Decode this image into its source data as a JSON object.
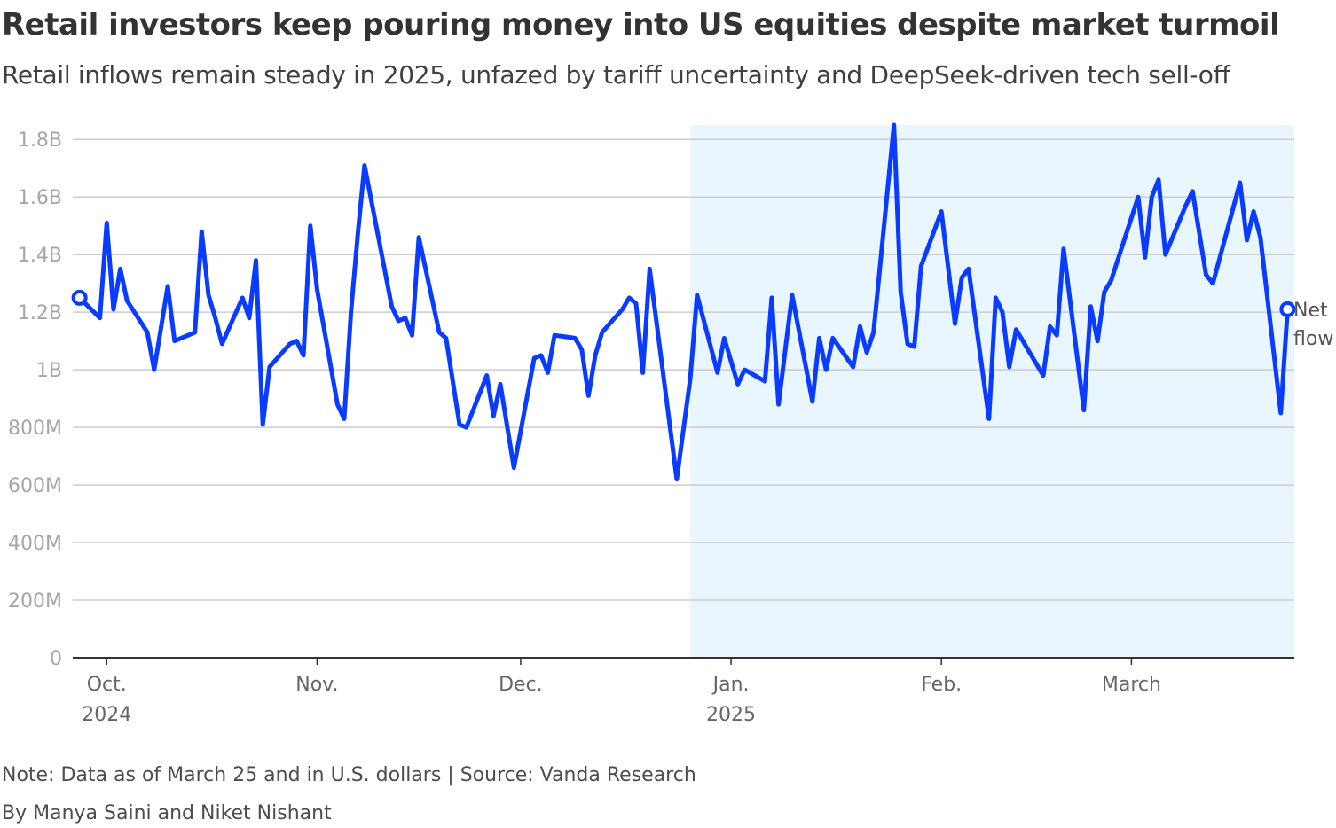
{
  "title": "Retail investors keep pouring money into US equities despite market turmoil",
  "subtitle": "Retail inflows remain steady in 2025, unfazed by tariff uncertainty and DeepSeek-driven tech sell-off",
  "note": "Note: Data as of March 25 and in U.S. dollars | Source: Vanda Research",
  "byline": "By Manya Saini and Niket Nishant",
  "colors": {
    "line": "#0a3cff",
    "shade": "#eaf6fd",
    "grid": "#cccccc",
    "axis": "#333333"
  },
  "chart_data": {
    "type": "line",
    "title": "Retail investors keep pouring money into US equities despite market turmoil",
    "ylabel": "",
    "xlabel": "",
    "ylim": [
      0,
      1.85
    ],
    "yticks": [
      {
        "v": 0,
        "label": "0"
      },
      {
        "v": 0.2,
        "label": "200M"
      },
      {
        "v": 0.4,
        "label": "400M"
      },
      {
        "v": 0.6,
        "label": "600M"
      },
      {
        "v": 0.8,
        "label": "800M"
      },
      {
        "v": 1.0,
        "label": "1B"
      },
      {
        "v": 1.2,
        "label": "1.2B"
      },
      {
        "v": 1.4,
        "label": "1.4B"
      },
      {
        "v": 1.6,
        "label": "1.6B"
      },
      {
        "v": 1.8,
        "label": "1.8B"
      }
    ],
    "xdomain": [
      -5,
      175
    ],
    "xticks": [
      {
        "d": 0,
        "line1": "Oct.",
        "line2": "2024"
      },
      {
        "d": 31,
        "line1": "Nov.",
        "line2": ""
      },
      {
        "d": 61,
        "line1": "Dec.",
        "line2": ""
      },
      {
        "d": 92,
        "line1": "Jan.",
        "line2": "2025"
      },
      {
        "d": 123,
        "line1": "Feb.",
        "line2": ""
      },
      {
        "d": 151,
        "line1": "March",
        "line2": ""
      }
    ],
    "shaded_range": [
      86,
      175
    ],
    "series": [
      {
        "name": "Net flow",
        "label_line1": "Net",
        "label_line2": "flow",
        "points": [
          [
            -4,
            1.25
          ],
          [
            -1,
            1.18
          ],
          [
            0,
            1.51
          ],
          [
            1,
            1.21
          ],
          [
            2,
            1.35
          ],
          [
            3,
            1.24
          ],
          [
            6,
            1.13
          ],
          [
            7,
            1.0
          ],
          [
            9,
            1.29
          ],
          [
            10,
            1.1
          ],
          [
            13,
            1.13
          ],
          [
            14,
            1.48
          ],
          [
            15,
            1.26
          ],
          [
            16,
            1.18
          ],
          [
            17,
            1.09
          ],
          [
            20,
            1.25
          ],
          [
            21,
            1.18
          ],
          [
            22,
            1.38
          ],
          [
            23,
            0.81
          ],
          [
            24,
            1.01
          ],
          [
            27,
            1.09
          ],
          [
            28,
            1.1
          ],
          [
            29,
            1.05
          ],
          [
            30,
            1.5
          ],
          [
            31,
            1.28
          ],
          [
            34,
            0.88
          ],
          [
            35,
            0.83
          ],
          [
            36,
            1.2
          ],
          [
            37,
            1.47
          ],
          [
            38,
            1.71
          ],
          [
            42,
            1.22
          ],
          [
            43,
            1.17
          ],
          [
            44,
            1.18
          ],
          [
            45,
            1.12
          ],
          [
            46,
            1.46
          ],
          [
            49,
            1.13
          ],
          [
            50,
            1.11
          ],
          [
            52,
            0.81
          ],
          [
            53,
            0.8
          ],
          [
            56,
            0.98
          ],
          [
            57,
            0.84
          ],
          [
            58,
            0.95
          ],
          [
            60,
            0.66
          ],
          [
            63,
            1.04
          ],
          [
            64,
            1.05
          ],
          [
            65,
            0.99
          ],
          [
            66,
            1.12
          ],
          [
            69,
            1.11
          ],
          [
            70,
            1.07
          ],
          [
            71,
            0.91
          ],
          [
            72,
            1.05
          ],
          [
            73,
            1.13
          ],
          [
            76,
            1.21
          ],
          [
            77,
            1.25
          ],
          [
            78,
            1.23
          ],
          [
            79,
            0.99
          ],
          [
            80,
            1.35
          ],
          [
            84,
            0.62
          ],
          [
            86,
            0.97
          ],
          [
            87,
            1.26
          ],
          [
            90,
            0.99
          ],
          [
            91,
            1.11
          ],
          [
            93,
            0.95
          ],
          [
            94,
            1.0
          ],
          [
            97,
            0.96
          ],
          [
            98,
            1.25
          ],
          [
            99,
            0.88
          ],
          [
            101,
            1.26
          ],
          [
            104,
            0.89
          ],
          [
            105,
            1.11
          ],
          [
            106,
            1.0
          ],
          [
            107,
            1.11
          ],
          [
            110,
            1.01
          ],
          [
            111,
            1.15
          ],
          [
            112,
            1.06
          ],
          [
            113,
            1.13
          ],
          [
            116,
            1.85
          ],
          [
            117,
            1.27
          ],
          [
            118,
            1.09
          ],
          [
            119,
            1.08
          ],
          [
            120,
            1.36
          ],
          [
            123,
            1.55
          ],
          [
            125,
            1.16
          ],
          [
            126,
            1.32
          ],
          [
            127,
            1.35
          ],
          [
            130,
            0.83
          ],
          [
            131,
            1.25
          ],
          [
            132,
            1.2
          ],
          [
            133,
            1.01
          ],
          [
            134,
            1.14
          ],
          [
            138,
            0.98
          ],
          [
            139,
            1.15
          ],
          [
            140,
            1.12
          ],
          [
            141,
            1.42
          ],
          [
            144,
            0.86
          ],
          [
            145,
            1.22
          ],
          [
            146,
            1.1
          ],
          [
            147,
            1.27
          ],
          [
            148,
            1.31
          ],
          [
            152,
            1.6
          ],
          [
            153,
            1.39
          ],
          [
            154,
            1.6
          ],
          [
            155,
            1.66
          ],
          [
            156,
            1.4
          ],
          [
            159,
            1.57
          ],
          [
            160,
            1.62
          ],
          [
            162,
            1.33
          ],
          [
            163,
            1.3
          ],
          [
            167,
            1.65
          ],
          [
            168,
            1.45
          ],
          [
            169,
            1.55
          ],
          [
            170,
            1.46
          ],
          [
            173,
            0.85
          ],
          [
            174,
            1.21
          ]
        ]
      }
    ]
  }
}
